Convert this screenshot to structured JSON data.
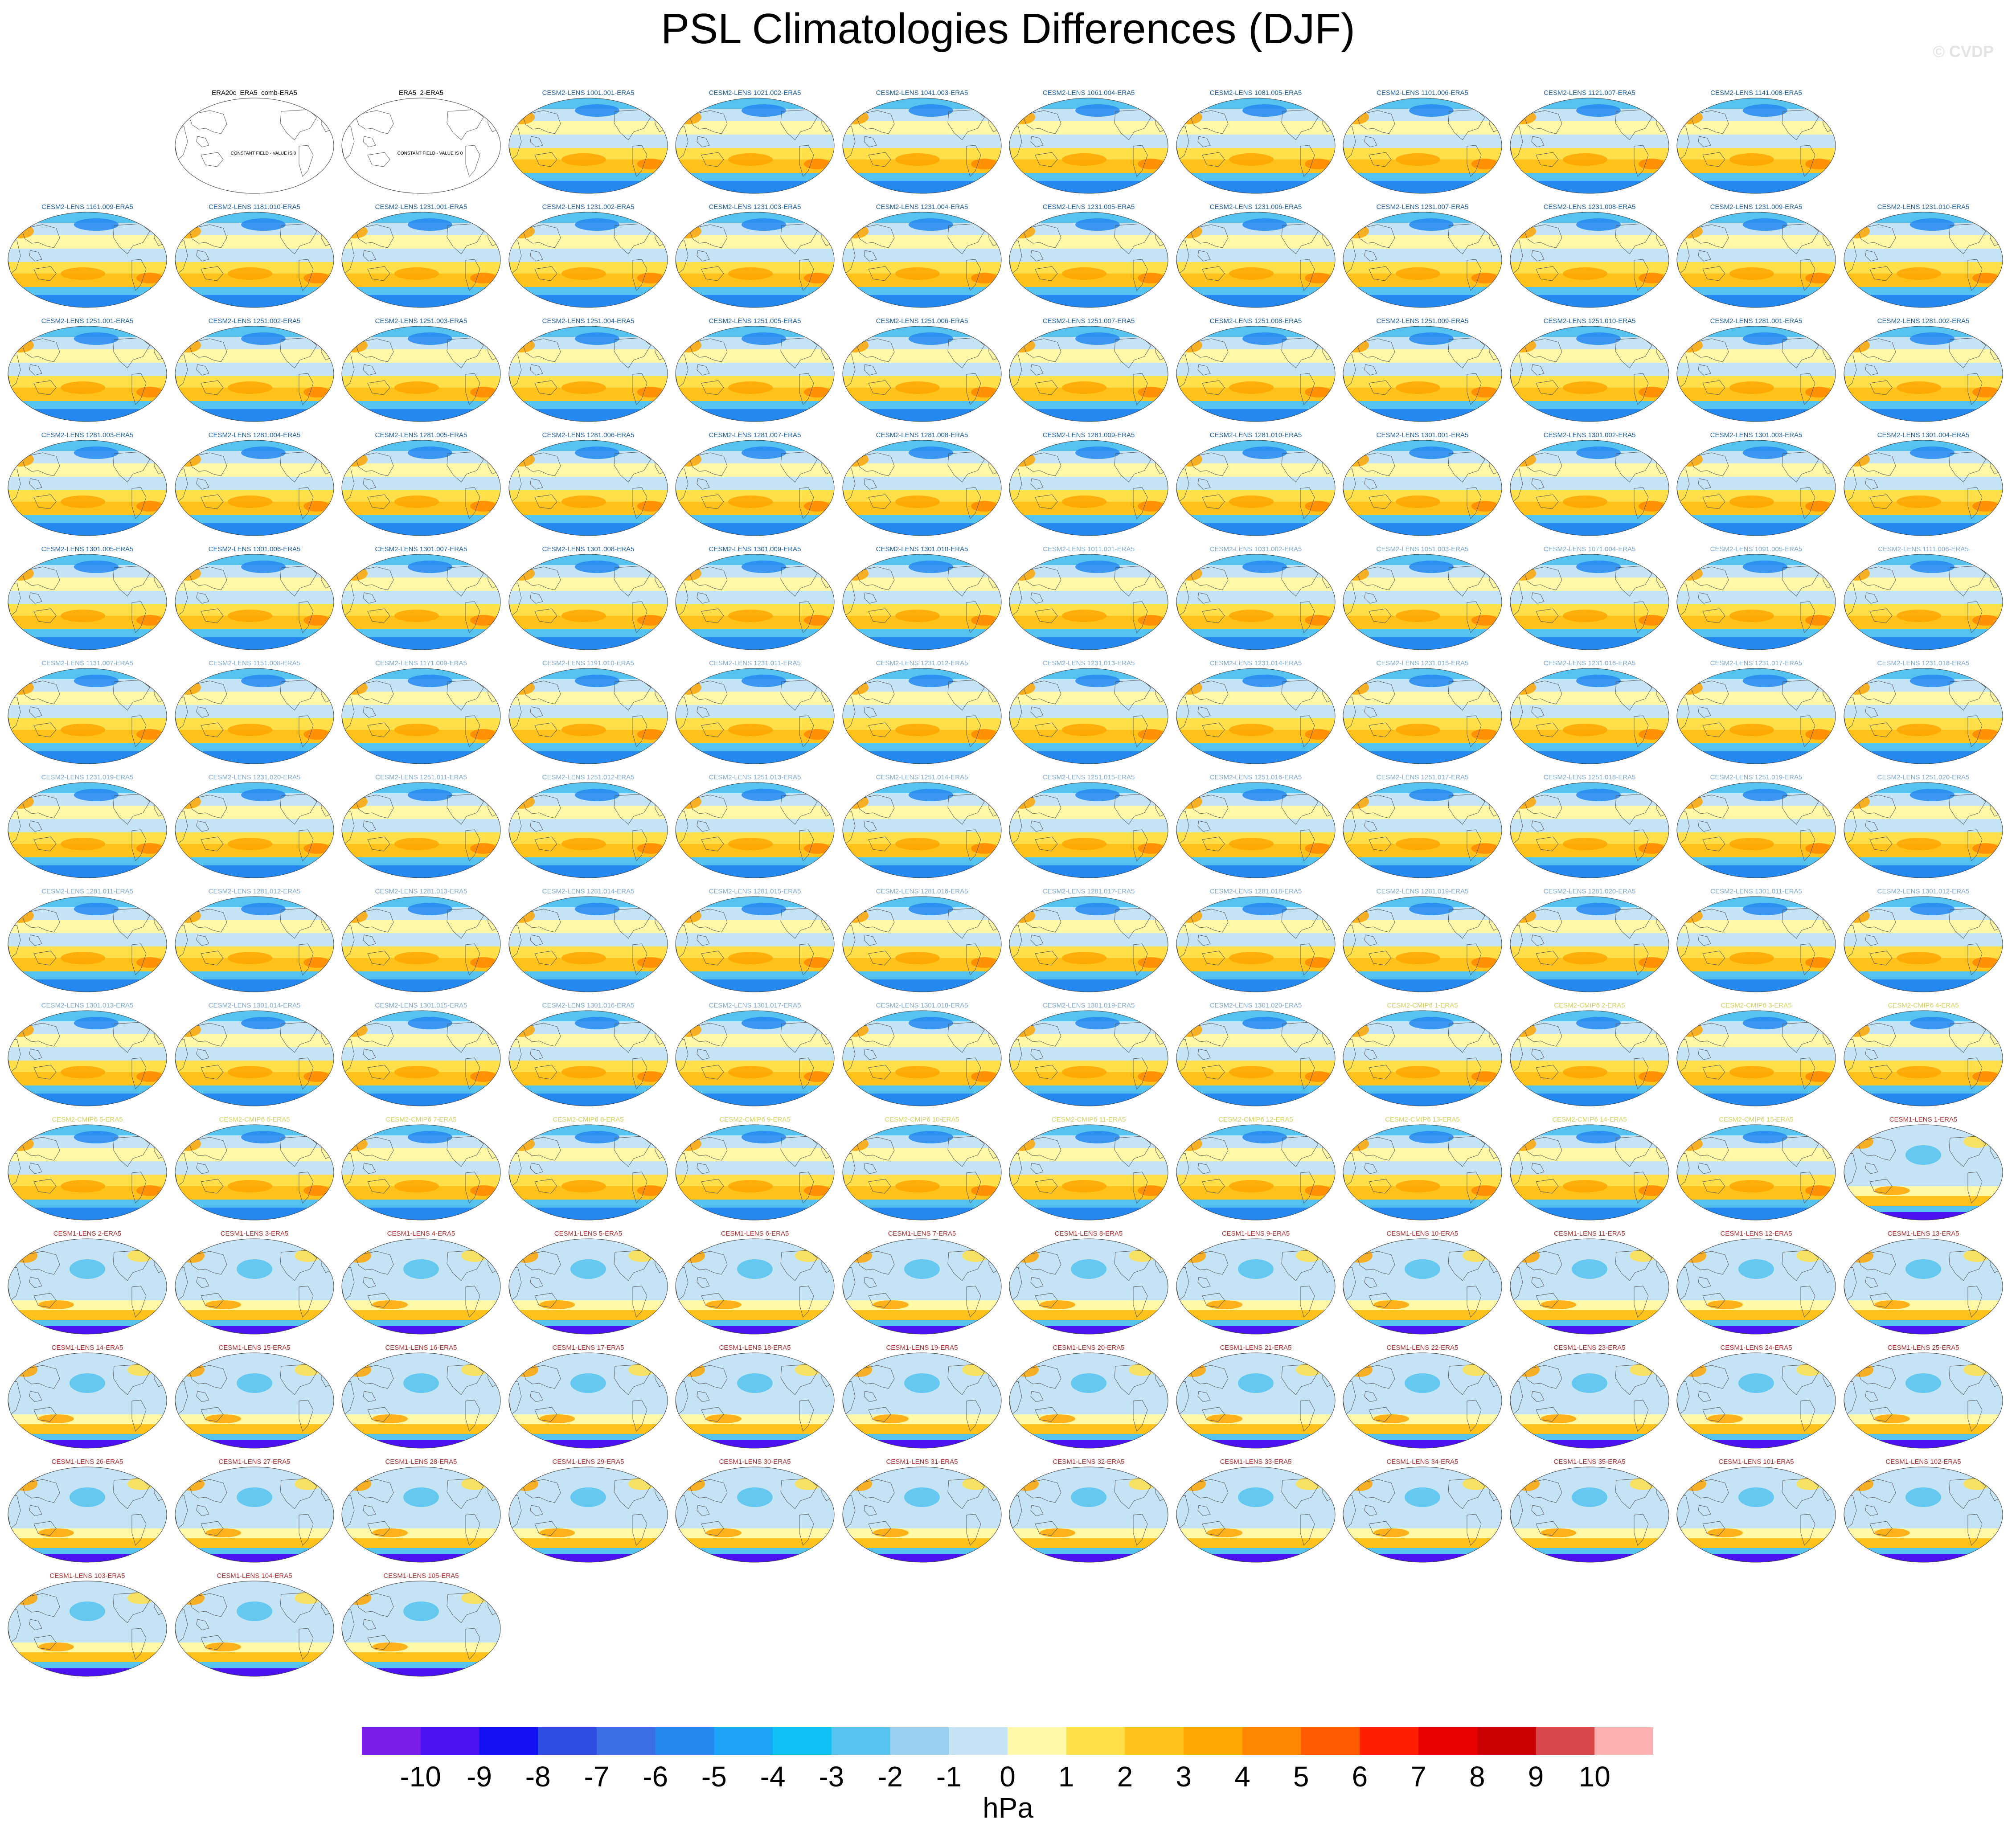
{
  "title": "PSL Climatologies Differences (DJF)",
  "watermark": "© CVDP",
  "units": "hPa",
  "colorbar": {
    "colors": [
      "#7b1fe6",
      "#4a12f0",
      "#1010f0",
      "#2e4de0",
      "#3a6ee6",
      "#2388f0",
      "#1ba3f5",
      "#10c0f8",
      "#55c3f0",
      "#9ad0f0",
      "#c4e4f6",
      "#fff8a6",
      "#ffe04a",
      "#ffc21a",
      "#ffa500",
      "#ff8800",
      "#ff5a00",
      "#ff2000",
      "#e80000",
      "#c80000",
      "#d84848",
      "#ffb0b0"
    ],
    "labels": [
      "-10",
      "-9",
      "-8",
      "-7",
      "-6",
      "-5",
      "-4",
      "-3",
      "-2",
      "-1",
      "0",
      "1",
      "2",
      "3",
      "4",
      "5",
      "6",
      "7",
      "8",
      "9",
      "10"
    ]
  },
  "panels": [
    {
      "title": "ERA20c_ERA5_comb-ERA5",
      "group": "obs",
      "note": "CONSTANT FIELD - VALUE IS 0"
    },
    {
      "title": "ERA5_2-ERA5",
      "group": "obs",
      "note": "CONSTANT FIELD - VALUE IS 0"
    },
    {
      "title": "CESM2-LENS 1001.001-ERA5",
      "group": "cesm2"
    },
    {
      "title": "CESM2-LENS 1021.002-ERA5",
      "group": "cesm2"
    },
    {
      "title": "CESM2-LENS 1041.003-ERA5",
      "group": "cesm2"
    },
    {
      "title": "CESM2-LENS 1061.004-ERA5",
      "group": "cesm2"
    },
    {
      "title": "CESM2-LENS 1081.005-ERA5",
      "group": "cesm2"
    },
    {
      "title": "CESM2-LENS 1101.006-ERA5",
      "group": "cesm2"
    },
    {
      "title": "CESM2-LENS 1121.007-ERA5",
      "group": "cesm2"
    },
    {
      "title": "CESM2-LENS 1141.008-ERA5",
      "group": "cesm2"
    },
    {
      "title": "CESM2-LENS 1161.009-ERA5",
      "group": "cesm2"
    },
    {
      "title": "CESM2-LENS 1181.010-ERA5",
      "group": "cesm2"
    },
    {
      "title": "CESM2-LENS 1231.001-ERA5",
      "group": "cesm2"
    },
    {
      "title": "CESM2-LENS 1231.002-ERA5",
      "group": "cesm2"
    },
    {
      "title": "CESM2-LENS 1231.003-ERA5",
      "group": "cesm2"
    },
    {
      "title": "CESM2-LENS 1231.004-ERA5",
      "group": "cesm2"
    },
    {
      "title": "CESM2-LENS 1231.005-ERA5",
      "group": "cesm2"
    },
    {
      "title": "CESM2-LENS 1231.006-ERA5",
      "group": "cesm2"
    },
    {
      "title": "CESM2-LENS 1231.007-ERA5",
      "group": "cesm2"
    },
    {
      "title": "CESM2-LENS 1231.008-ERA5",
      "group": "cesm2"
    },
    {
      "title": "CESM2-LENS 1231.009-ERA5",
      "group": "cesm2"
    },
    {
      "title": "CESM2-LENS 1231.010-ERA5",
      "group": "cesm2"
    },
    {
      "title": "CESM2-LENS 1251.001-ERA5",
      "group": "cesm2"
    },
    {
      "title": "CESM2-LENS 1251.002-ERA5",
      "group": "cesm2"
    },
    {
      "title": "CESM2-LENS 1251.003-ERA5",
      "group": "cesm2"
    },
    {
      "title": "CESM2-LENS 1251.004-ERA5",
      "group": "cesm2"
    },
    {
      "title": "CESM2-LENS 1251.005-ERA5",
      "group": "cesm2"
    },
    {
      "title": "CESM2-LENS 1251.006-ERA5",
      "group": "cesm2"
    },
    {
      "title": "CESM2-LENS 1251.007-ERA5",
      "group": "cesm2"
    },
    {
      "title": "CESM2-LENS 1251.008-ERA5",
      "group": "cesm2"
    },
    {
      "title": "CESM2-LENS 1251.009-ERA5",
      "group": "cesm2"
    },
    {
      "title": "CESM2-LENS 1251.010-ERA5",
      "group": "cesm2"
    },
    {
      "title": "CESM2-LENS 1281.001-ERA5",
      "group": "cesm2"
    },
    {
      "title": "CESM2-LENS 1281.002-ERA5",
      "group": "cesm2"
    },
    {
      "title": "CESM2-LENS 1281.003-ERA5",
      "group": "cesm2"
    },
    {
      "title": "CESM2-LENS 1281.004-ERA5",
      "group": "cesm2"
    },
    {
      "title": "CESM2-LENS 1281.005-ERA5",
      "group": "cesm2"
    },
    {
      "title": "CESM2-LENS 1281.006-ERA5",
      "group": "cesm2"
    },
    {
      "title": "CESM2-LENS 1281.007-ERA5",
      "group": "cesm2"
    },
    {
      "title": "CESM2-LENS 1281.008-ERA5",
      "group": "cesm2"
    },
    {
      "title": "CESM2-LENS 1281.009-ERA5",
      "group": "cesm2"
    },
    {
      "title": "CESM2-LENS 1281.010-ERA5",
      "group": "cesm2"
    },
    {
      "title": "CESM2-LENS 1301.001-ERA5",
      "group": "cesm2"
    },
    {
      "title": "CESM2-LENS 1301.002-ERA5",
      "group": "cesm2"
    },
    {
      "title": "CESM2-LENS 1301.003-ERA5",
      "group": "cesm2"
    },
    {
      "title": "CESM2-LENS 1301.004-ERA5",
      "group": "cesm2"
    },
    {
      "title": "CESM2-LENS 1301.005-ERA5",
      "group": "cesm2"
    },
    {
      "title": "CESM2-LENS 1301.006-ERA5",
      "group": "cesm2"
    },
    {
      "title": "CESM2-LENS 1301.007-ERA5",
      "group": "cesm2"
    },
    {
      "title": "CESM2-LENS 1301.008-ERA5",
      "group": "cesm2"
    },
    {
      "title": "CESM2-LENS 1301.009-ERA5",
      "group": "cesm2"
    },
    {
      "title": "CESM2-LENS 1301.010-ERA5",
      "group": "cesm2"
    },
    {
      "title": "CESM2-LENS 1011.001-ERA5",
      "group": "cesm2b"
    },
    {
      "title": "CESM2-LENS 1031.002-ERA5",
      "group": "cesm2b"
    },
    {
      "title": "CESM2-LENS 1051.003-ERA5",
      "group": "cesm2b"
    },
    {
      "title": "CESM2-LENS 1071.004-ERA5",
      "group": "cesm2b"
    },
    {
      "title": "CESM2-LENS 1091.005-ERA5",
      "group": "cesm2b"
    },
    {
      "title": "CESM2-LENS 1111.006-ERA5",
      "group": "cesm2b"
    },
    {
      "title": "CESM2-LENS 1131.007-ERA5",
      "group": "cesm2b"
    },
    {
      "title": "CESM2-LENS 1151.008-ERA5",
      "group": "cesm2b"
    },
    {
      "title": "CESM2-LENS 1171.009-ERA5",
      "group": "cesm2b"
    },
    {
      "title": "CESM2-LENS 1191.010-ERA5",
      "group": "cesm2b"
    },
    {
      "title": "CESM2-LENS 1231.011-ERA5",
      "group": "cesm2b"
    },
    {
      "title": "CESM2-LENS 1231.012-ERA5",
      "group": "cesm2b"
    },
    {
      "title": "CESM2-LENS 1231.013-ERA5",
      "group": "cesm2b"
    },
    {
      "title": "CESM2-LENS 1231.014-ERA5",
      "group": "cesm2b"
    },
    {
      "title": "CESM2-LENS 1231.015-ERA5",
      "group": "cesm2b"
    },
    {
      "title": "CESM2-LENS 1231.016-ERA5",
      "group": "cesm2b"
    },
    {
      "title": "CESM2-LENS 1231.017-ERA5",
      "group": "cesm2b"
    },
    {
      "title": "CESM2-LENS 1231.018-ERA5",
      "group": "cesm2b"
    },
    {
      "title": "CESM2-LENS 1231.019-ERA5",
      "group": "cesm2b"
    },
    {
      "title": "CESM2-LENS 1231.020-ERA5",
      "group": "cesm2b"
    },
    {
      "title": "CESM2-LENS 1251.011-ERA5",
      "group": "cesm2b"
    },
    {
      "title": "CESM2-LENS 1251.012-ERA5",
      "group": "cesm2b"
    },
    {
      "title": "CESM2-LENS 1251.013-ERA5",
      "group": "cesm2b"
    },
    {
      "title": "CESM2-LENS 1251.014-ERA5",
      "group": "cesm2b"
    },
    {
      "title": "CESM2-LENS 1251.015-ERA5",
      "group": "cesm2b"
    },
    {
      "title": "CESM2-LENS 1251.016-ERA5",
      "group": "cesm2b"
    },
    {
      "title": "CESM2-LENS 1251.017-ERA5",
      "group": "cesm2b"
    },
    {
      "title": "CESM2-LENS 1251.018-ERA5",
      "group": "cesm2b"
    },
    {
      "title": "CESM2-LENS 1251.019-ERA5",
      "group": "cesm2b"
    },
    {
      "title": "CESM2-LENS 1251.020-ERA5",
      "group": "cesm2b"
    },
    {
      "title": "CESM2-LENS 1281.011-ERA5",
      "group": "cesm2b"
    },
    {
      "title": "CESM2-LENS 1281.012-ERA5",
      "group": "cesm2b"
    },
    {
      "title": "CESM2-LENS 1281.013-ERA5",
      "group": "cesm2b"
    },
    {
      "title": "CESM2-LENS 1281.014-ERA5",
      "group": "cesm2b"
    },
    {
      "title": "CESM2-LENS 1281.015-ERA5",
      "group": "cesm2b"
    },
    {
      "title": "CESM2-LENS 1281.016-ERA5",
      "group": "cesm2b"
    },
    {
      "title": "CESM2-LENS 1281.017-ERA5",
      "group": "cesm2b"
    },
    {
      "title": "CESM2-LENS 1281.018-ERA5",
      "group": "cesm2b"
    },
    {
      "title": "CESM2-LENS 1281.019-ERA5",
      "group": "cesm2b"
    },
    {
      "title": "CESM2-LENS 1281.020-ERA5",
      "group": "cesm2b"
    },
    {
      "title": "CESM2-LENS 1301.011-ERA5",
      "group": "cesm2b"
    },
    {
      "title": "CESM2-LENS 1301.012-ERA5",
      "group": "cesm2b"
    },
    {
      "title": "CESM2-LENS 1301.013-ERA5",
      "group": "cesm2b"
    },
    {
      "title": "CESM2-LENS 1301.014-ERA5",
      "group": "cesm2b"
    },
    {
      "title": "CESM2-LENS 1301.015-ERA5",
      "group": "cesm2b"
    },
    {
      "title": "CESM2-LENS 1301.016-ERA5",
      "group": "cesm2b"
    },
    {
      "title": "CESM2-LENS 1301.017-ERA5",
      "group": "cesm2b"
    },
    {
      "title": "CESM2-LENS 1301.018-ERA5",
      "group": "cesm2b"
    },
    {
      "title": "CESM2-LENS 1301.019-ERA5",
      "group": "cesm2b"
    },
    {
      "title": "CESM2-LENS 1301.020-ERA5",
      "group": "cesm2b"
    },
    {
      "title": "CESM2-CMIP6 1-ERA5",
      "group": "cmip6"
    },
    {
      "title": "CESM2-CMIP6 2-ERA5",
      "group": "cmip6"
    },
    {
      "title": "CESM2-CMIP6 3-ERA5",
      "group": "cmip6"
    },
    {
      "title": "CESM2-CMIP6 4-ERA5",
      "group": "cmip6"
    },
    {
      "title": "CESM2-CMIP6 5-ERA5",
      "group": "cmip6"
    },
    {
      "title": "CESM2-CMIP6 6-ERA5",
      "group": "cmip6"
    },
    {
      "title": "CESM2-CMIP6 7-ERA5",
      "group": "cmip6"
    },
    {
      "title": "CESM2-CMIP6 8-ERA5",
      "group": "cmip6"
    },
    {
      "title": "CESM2-CMIP6 9-ERA5",
      "group": "cmip6"
    },
    {
      "title": "CESM2-CMIP6 10-ERA5",
      "group": "cmip6"
    },
    {
      "title": "CESM2-CMIP6 11-ERA5",
      "group": "cmip6"
    },
    {
      "title": "CESM2-CMIP6 12-ERA5",
      "group": "cmip6"
    },
    {
      "title": "CESM2-CMIP6 13-ERA5",
      "group": "cmip6"
    },
    {
      "title": "CESM2-CMIP6 14-ERA5",
      "group": "cmip6"
    },
    {
      "title": "CESM2-CMIP6 15-ERA5",
      "group": "cmip6"
    },
    {
      "title": "CESM1-LENS 1-ERA5",
      "group": "cesm1"
    },
    {
      "title": "CESM1-LENS 2-ERA5",
      "group": "cesm1"
    },
    {
      "title": "CESM1-LENS 3-ERA5",
      "group": "cesm1"
    },
    {
      "title": "CESM1-LENS 4-ERA5",
      "group": "cesm1"
    },
    {
      "title": "CESM1-LENS 5-ERA5",
      "group": "cesm1"
    },
    {
      "title": "CESM1-LENS 6-ERA5",
      "group": "cesm1"
    },
    {
      "title": "CESM1-LENS 7-ERA5",
      "group": "cesm1"
    },
    {
      "title": "CESM1-LENS 8-ERA5",
      "group": "cesm1"
    },
    {
      "title": "CESM1-LENS 9-ERA5",
      "group": "cesm1"
    },
    {
      "title": "CESM1-LENS 10-ERA5",
      "group": "cesm1"
    },
    {
      "title": "CESM1-LENS 11-ERA5",
      "group": "cesm1"
    },
    {
      "title": "CESM1-LENS 12-ERA5",
      "group": "cesm1"
    },
    {
      "title": "CESM1-LENS 13-ERA5",
      "group": "cesm1"
    },
    {
      "title": "CESM1-LENS 14-ERA5",
      "group": "cesm1"
    },
    {
      "title": "CESM1-LENS 15-ERA5",
      "group": "cesm1"
    },
    {
      "title": "CESM1-LENS 16-ERA5",
      "group": "cesm1"
    },
    {
      "title": "CESM1-LENS 17-ERA5",
      "group": "cesm1"
    },
    {
      "title": "CESM1-LENS 18-ERA5",
      "group": "cesm1"
    },
    {
      "title": "CESM1-LENS 19-ERA5",
      "group": "cesm1"
    },
    {
      "title": "CESM1-LENS 20-ERA5",
      "group": "cesm1"
    },
    {
      "title": "CESM1-LENS 21-ERA5",
      "group": "cesm1"
    },
    {
      "title": "CESM1-LENS 22-ERA5",
      "group": "cesm1"
    },
    {
      "title": "CESM1-LENS 23-ERA5",
      "group": "cesm1"
    },
    {
      "title": "CESM1-LENS 24-ERA5",
      "group": "cesm1"
    },
    {
      "title": "CESM1-LENS 25-ERA5",
      "group": "cesm1"
    },
    {
      "title": "CESM1-LENS 26-ERA5",
      "group": "cesm1"
    },
    {
      "title": "CESM1-LENS 27-ERA5",
      "group": "cesm1"
    },
    {
      "title": "CESM1-LENS 28-ERA5",
      "group": "cesm1"
    },
    {
      "title": "CESM1-LENS 29-ERA5",
      "group": "cesm1"
    },
    {
      "title": "CESM1-LENS 30-ERA5",
      "group": "cesm1"
    },
    {
      "title": "CESM1-LENS 31-ERA5",
      "group": "cesm1"
    },
    {
      "title": "CESM1-LENS 32-ERA5",
      "group": "cesm1"
    },
    {
      "title": "CESM1-LENS 33-ERA5",
      "group": "cesm1"
    },
    {
      "title": "CESM1-LENS 34-ERA5",
      "group": "cesm1"
    },
    {
      "title": "CESM1-LENS 35-ERA5",
      "group": "cesm1"
    },
    {
      "title": "CESM1-LENS 101-ERA5",
      "group": "cesm1"
    },
    {
      "title": "CESM1-LENS 102-ERA5",
      "group": "cesm1"
    },
    {
      "title": "CESM1-LENS 103-ERA5",
      "group": "cesm1"
    },
    {
      "title": "CESM1-LENS 104-ERA5",
      "group": "cesm1"
    },
    {
      "title": "CESM1-LENS 105-ERA5",
      "group": "cesm1"
    }
  ],
  "group_title_colors": {
    "obs": "#000000",
    "cesm2": "#1f5fa0",
    "cesm2b": "#7fa7cf",
    "cmip6": "#d4cf5a",
    "cesm1": "#b03030"
  }
}
